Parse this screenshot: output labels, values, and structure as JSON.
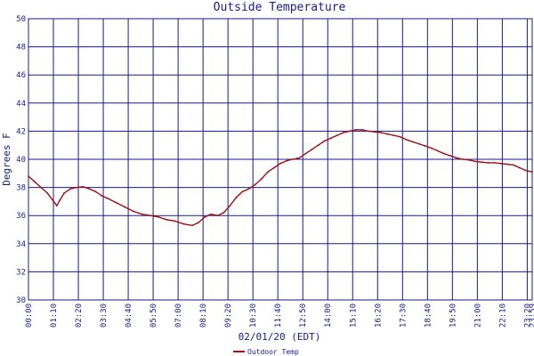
{
  "chart_data": {
    "type": "line",
    "title": "Outside Temperature",
    "xlabel": "02/01/20 (EDT)",
    "ylabel": "Degrees F",
    "ylim": [
      30,
      50
    ],
    "yticks": [
      30,
      32,
      34,
      36,
      38,
      40,
      42,
      44,
      46,
      48,
      50
    ],
    "xtick_labels": [
      "00:00",
      "01:10",
      "02:20",
      "03:30",
      "04:40",
      "05:50",
      "07:00",
      "08:10",
      "09:20",
      "10:30",
      "11:40",
      "12:50",
      "14:00",
      "15:10",
      "16:20",
      "17:30",
      "18:40",
      "19:50",
      "21:00",
      "22:10",
      "23:20",
      "23:59"
    ],
    "x_range_hours": [
      0,
      24
    ],
    "grid": true,
    "legend_position": "bottom",
    "colors": {
      "series": "#a01010",
      "grid": "#1a1a8c",
      "text": "#1a1a8c"
    },
    "series": [
      {
        "name": "Outdoor Temp",
        "x_hours": [
          0,
          0.3,
          0.6,
          0.9,
          1.2,
          1.35,
          1.5,
          1.7,
          2.0,
          2.3,
          2.6,
          2.9,
          3.2,
          3.5,
          3.8,
          4.2,
          4.6,
          5.0,
          5.4,
          5.8,
          6.2,
          6.6,
          7.0,
          7.4,
          7.8,
          8.1,
          8.4,
          8.7,
          9.0,
          9.3,
          9.6,
          9.9,
          10.2,
          10.5,
          10.8,
          11.1,
          11.4,
          11.7,
          12.0,
          12.3,
          12.6,
          12.9,
          13.2,
          13.5,
          13.8,
          14.1,
          14.4,
          14.7,
          15.0,
          15.3,
          15.6,
          15.9,
          16.2,
          16.5,
          16.8,
          17.1,
          17.4,
          17.7,
          18.0,
          18.3,
          18.6,
          18.9,
          19.2,
          19.5,
          19.8,
          20.1,
          20.4,
          20.7,
          21.0,
          21.3,
          21.6,
          21.9,
          22.2,
          22.5,
          22.8,
          23.1,
          23.4,
          23.7,
          24.0
        ],
        "values": [
          38.8,
          38.4,
          38.0,
          37.6,
          37.0,
          36.7,
          37.1,
          37.6,
          37.9,
          38.0,
          38.05,
          37.9,
          37.7,
          37.4,
          37.2,
          36.9,
          36.6,
          36.3,
          36.1,
          36.0,
          35.9,
          35.7,
          35.6,
          35.4,
          35.3,
          35.5,
          35.9,
          36.1,
          36.0,
          36.2,
          36.7,
          37.3,
          37.7,
          37.9,
          38.2,
          38.6,
          39.1,
          39.4,
          39.7,
          39.9,
          40.0,
          40.1,
          40.4,
          40.7,
          41.0,
          41.3,
          41.5,
          41.7,
          41.9,
          42.0,
          42.1,
          42.1,
          42.0,
          41.95,
          41.9,
          41.8,
          41.7,
          41.6,
          41.4,
          41.25,
          41.1,
          40.95,
          40.8,
          40.6,
          40.4,
          40.25,
          40.1,
          40.0,
          39.95,
          39.85,
          39.8,
          39.75,
          39.75,
          39.7,
          39.65,
          39.6,
          39.4,
          39.2,
          39.1
        ]
      }
    ]
  }
}
